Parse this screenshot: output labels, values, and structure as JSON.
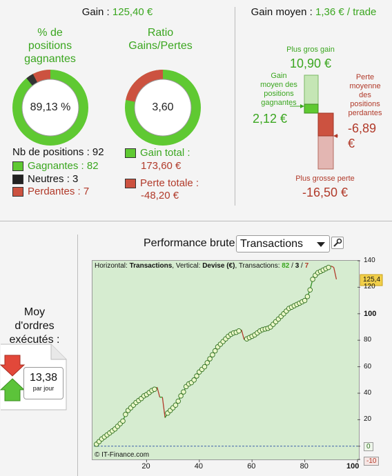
{
  "gain": {
    "label": "Gain : ",
    "value": "125,40 €"
  },
  "win_pct": {
    "title_lines": [
      "% de",
      "positions",
      "gagnantes"
    ],
    "value": "89,13 %",
    "winning_fraction": 0.8913
  },
  "ratio": {
    "title_lines": [
      "Ratio",
      "Gains/Pertes"
    ],
    "value": "3,60",
    "gain_fraction": 0.7826
  },
  "positions": {
    "count_label": "Nb de positions : 92",
    "winners_label": "Gagnantes : 82",
    "neutral_label": "Neutres : 3",
    "losers_label": "Perdantes : 7",
    "winners": 82,
    "neutral": 3,
    "losers": 7
  },
  "totals": {
    "gain_label": "Gain total :",
    "gain_value": "173,60 €",
    "loss_label": "Perte totale :",
    "loss_value": "-48,20 €"
  },
  "avg_gain": {
    "label": "Gain moyen : ",
    "value": "1,36 € / trade",
    "best_gain_label": "Plus gros gain",
    "best_gain_value": "10,90 €",
    "avg_win_label_lines": [
      "Gain",
      "moyen des",
      "positions",
      "gagnantes"
    ],
    "avg_win_value": "2,12 €",
    "avg_loss_label_lines": [
      "Perte",
      "moyenne",
      "des",
      "positions",
      "perdantes"
    ],
    "avg_loss_value_lines": [
      "-6,89",
      "€"
    ],
    "worst_loss_label": "Plus grosse perte",
    "worst_loss_value": "-16,50 €"
  },
  "performance": {
    "label": "Performance brute",
    "select_value": "Transactions",
    "header_prefix": "Horizontal: ",
    "header_h": "Transactions",
    "header_mid": ", Vertical: ",
    "header_v": "Devise (€)",
    "header_tx": ", Transactions: ",
    "header_w": "82",
    "header_sep1": " / ",
    "header_n": "3",
    "header_sep2": " / ",
    "header_l": "7",
    "copyright": "© IT-Finance.com",
    "current_value": "125,4"
  },
  "orders": {
    "title_lines": [
      "Moy",
      "d'ordres",
      "exécutés :"
    ],
    "value": "13,38",
    "unit": "par jour"
  },
  "colors": {
    "green": "#3aa61f",
    "red": "#b13a2a",
    "chart_bg": "#d6ecd0",
    "marker_fill": "#eaf7c8"
  },
  "chart_data": {
    "type": "line",
    "xlim": [
      0,
      100
    ],
    "ylim": [
      -10,
      140
    ],
    "xticks": [
      "20",
      "40",
      "60",
      "80",
      "100"
    ],
    "yticks": [
      "140",
      "120",
      "100",
      "80",
      "60",
      "40",
      "20",
      "0",
      "-10"
    ],
    "x": [
      1,
      2,
      3,
      4,
      5,
      6,
      7,
      8,
      9,
      10,
      11,
      12,
      13,
      14,
      15,
      16,
      17,
      18,
      19,
      20,
      21,
      22,
      23,
      24,
      25,
      26,
      27,
      28,
      29,
      30,
      31,
      32,
      33,
      34,
      35,
      36,
      37,
      38,
      39,
      40,
      41,
      42,
      43,
      44,
      45,
      46,
      47,
      48,
      49,
      50,
      51,
      52,
      53,
      54,
      55,
      56,
      57,
      58,
      59,
      60,
      61,
      62,
      63,
      64,
      65,
      66,
      67,
      68,
      69,
      70,
      71,
      72,
      73,
      74,
      75,
      76,
      77,
      78,
      79,
      80,
      81,
      82,
      83,
      84,
      85,
      86,
      87,
      88,
      89,
      90,
      91,
      92
    ],
    "values": [
      1.5,
      3.5,
      5.5,
      7,
      8.5,
      10,
      11.5,
      13,
      15,
      17,
      19,
      24,
      27,
      29,
      31,
      33,
      34.5,
      36,
      38,
      39,
      40.5,
      42,
      43,
      44.5,
      37,
      37,
      21.5,
      25,
      27,
      29,
      31,
      34,
      38,
      41,
      45,
      47,
      48,
      50,
      53,
      56,
      58,
      60,
      63,
      66,
      69,
      72,
      75,
      77,
      79,
      81,
      83,
      84.5,
      85.5,
      86,
      87,
      87.8,
      80.5,
      81,
      82,
      83,
      84,
      85.5,
      87,
      88,
      88.5,
      89,
      90,
      92,
      94,
      96,
      98,
      100,
      102,
      104,
      105,
      106,
      107,
      108,
      109,
      110,
      113,
      118,
      126,
      129,
      131,
      132,
      133,
      134,
      135,
      136,
      135,
      126
    ]
  }
}
